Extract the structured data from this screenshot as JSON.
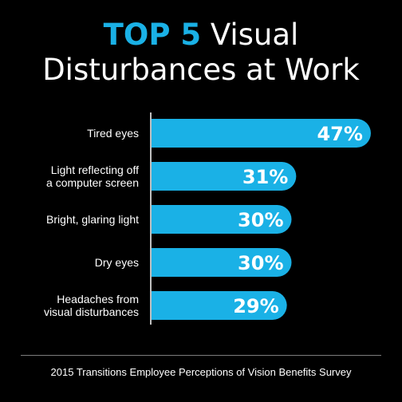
{
  "title": {
    "accent": "TOP 5",
    "rest_line1": "Visual",
    "line2": "Disturbances at Work"
  },
  "colors": {
    "bar": "#1ab1e6",
    "background": "#000000",
    "text": "#ffffff"
  },
  "chart_data": {
    "type": "bar",
    "orientation": "horizontal",
    "categories": [
      [
        "Tired eyes"
      ],
      [
        "Light reflecting off",
        "a computer screen"
      ],
      [
        "Bright, glaring light"
      ],
      [
        "Dry eyes"
      ],
      [
        "Headaches from",
        "visual disturbances"
      ]
    ],
    "values": [
      47,
      31,
      30,
      30,
      29
    ],
    "value_labels": [
      "47%",
      "31%",
      "30%",
      "30%",
      "29%"
    ],
    "unit": "%"
  },
  "source": "2015 Transitions Employee Perceptions of Vision Benefits Survey"
}
